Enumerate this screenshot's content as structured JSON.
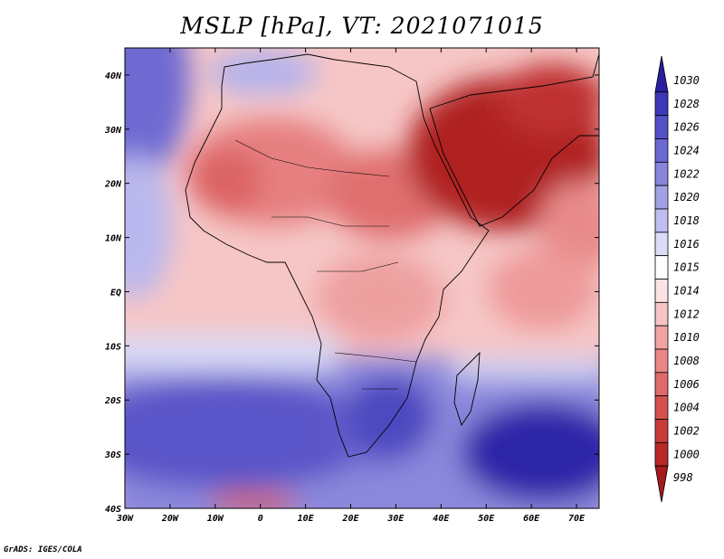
{
  "title": "MSLP [hPa], VT: 2021071015",
  "credit": "GrADS: IGES/COLA",
  "map": {
    "region": "Africa and Arabian Peninsula",
    "lon_range": [
      -30,
      75
    ],
    "lat_range": [
      -40,
      45
    ],
    "lat_labels": [
      "40N",
      "30N",
      "20N",
      "10N",
      "EQ",
      "10S",
      "20S",
      "30S",
      "40S"
    ],
    "lon_labels": [
      "30W",
      "20W",
      "10W",
      "0",
      "10E",
      "20E",
      "30E",
      "40E",
      "50E",
      "60E",
      "70E"
    ]
  },
  "colorbar": {
    "levels": [
      "1030",
      "1028",
      "1026",
      "1024",
      "1022",
      "1020",
      "1018",
      "1016",
      "1015",
      "1014",
      "1012",
      "1010",
      "1008",
      "1006",
      "1004",
      "1002",
      "1000",
      "998"
    ],
    "colors": [
      "#2a1fa0",
      "#3d38b8",
      "#5450c8",
      "#6b68d2",
      "#8784dc",
      "#a3a1e6",
      "#bfbef0",
      "#dcdcf8",
      "#ffffff",
      "#fde4e4",
      "#f8c4c4",
      "#f2a4a4",
      "#e98686",
      "#e06a6a",
      "#d65050",
      "#c93a3a",
      "#b72828",
      "#a51a1a"
    ]
  }
}
